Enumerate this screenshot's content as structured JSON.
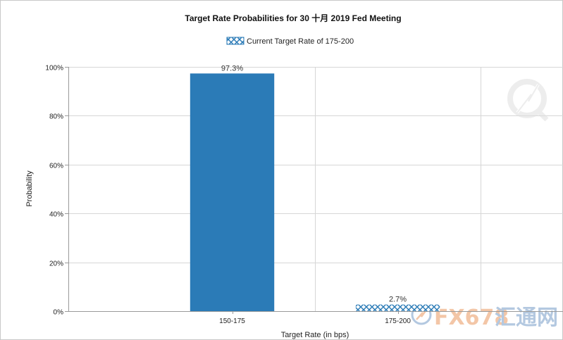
{
  "chart_data": {
    "type": "bar",
    "title": "Target Rate Probabilities for 30  十月  2019  Fed Meeting",
    "legend": {
      "label": "Current Target Rate of 175-200",
      "placement": "top-center"
    },
    "xlabel": "Target Rate (in bps)",
    "ylabel": "Probability",
    "categories": [
      "150-175",
      "175-200"
    ],
    "values": [
      97.3,
      2.7
    ],
    "data_labels": [
      "97.3%",
      "2.7%"
    ],
    "current_target_category": "175-200",
    "ylim": [
      0,
      100
    ],
    "yticks": [
      0,
      20,
      40,
      60,
      80,
      100
    ],
    "ytick_labels": [
      "0%",
      "20%",
      "40%",
      "60%",
      "80%",
      "100%"
    ],
    "grid": true,
    "colors": {
      "bar": "#2b7bb7",
      "pattern_fill": "#2b7bb7",
      "pattern_background": "#ffffff",
      "grid": "#d6d6d6"
    }
  },
  "watermark": {
    "text": "FX678",
    "text_cn": "汇通网",
    "colors": {
      "fx": "#f0b48a",
      "cn": "#9ab6d6",
      "logo": "#e0e0e0"
    }
  }
}
